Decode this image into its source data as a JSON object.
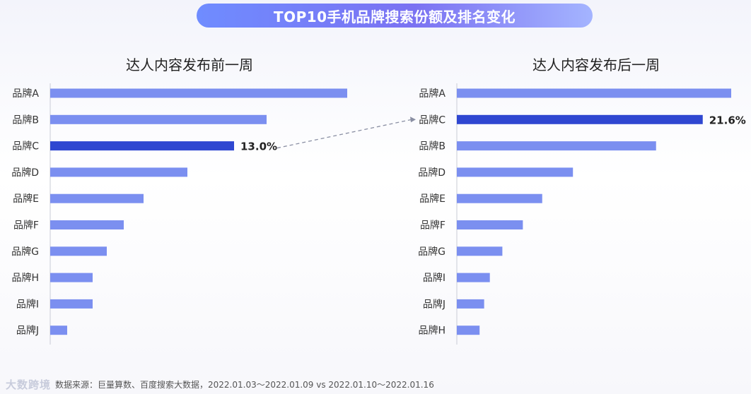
{
  "title": "TOP10手机品牌搜索份额及排名变化",
  "colors": {
    "bar": "#7b8ff0",
    "highlight": "#2f47d1",
    "pill_start": "#6f8cff",
    "pill_end": "#a4b4ff"
  },
  "chart_data": [
    {
      "type": "bar",
      "orientation": "horizontal",
      "subtitle": "达人内容发布前一周",
      "categories": [
        "品牌A",
        "品牌B",
        "品牌C",
        "品牌D",
        "品牌E",
        "品牌F",
        "品牌G",
        "品牌H",
        "品牌I",
        "品牌J"
      ],
      "values": [
        21.0,
        15.3,
        13.0,
        9.7,
        6.6,
        5.2,
        4.0,
        3.0,
        3.0,
        1.2
      ],
      "highlight": "品牌C",
      "data_labels": {
        "品牌C": "13.0%"
      }
    },
    {
      "type": "bar",
      "orientation": "horizontal",
      "subtitle": "达人内容发布后一周",
      "categories": [
        "品牌A",
        "品牌C",
        "品牌B",
        "品牌D",
        "品牌E",
        "品牌F",
        "品牌G",
        "品牌I",
        "品牌J",
        "品牌H"
      ],
      "values": [
        24.1,
        21.6,
        17.5,
        10.2,
        7.5,
        5.8,
        4.0,
        2.9,
        2.4,
        2.0
      ],
      "highlight": "品牌C",
      "data_labels": {
        "品牌C": "21.6%"
      }
    }
  ],
  "footer": {
    "logo_text": "大数跨境",
    "source_text": "数据来源：巨量算数、百度搜索大数据，2022.01.03～2022.01.09 vs 2022.01.10～2022.01.16"
  }
}
